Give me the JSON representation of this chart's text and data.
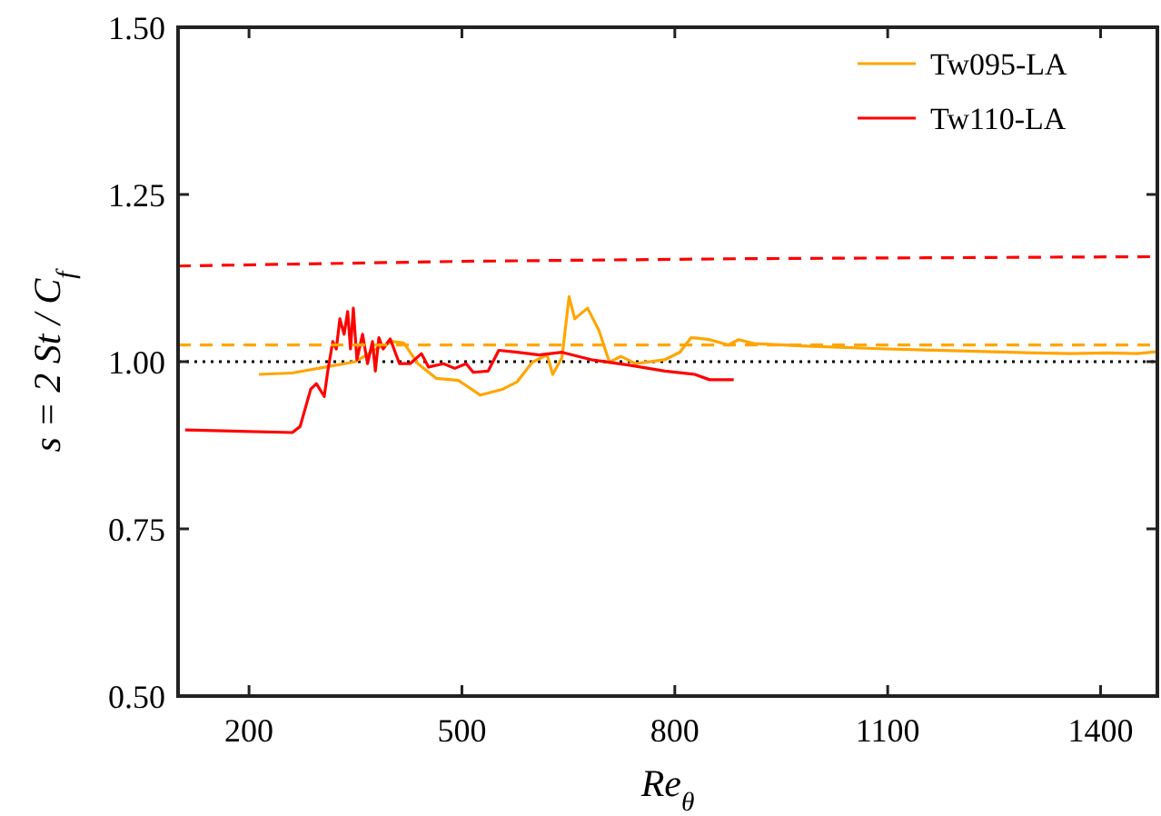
{
  "chart_data": {
    "type": "line",
    "xlabel": "Re$_{θ}$",
    "ylabel": "s = 2 St / C$_{f}$",
    "xlim": [
      100,
      1480
    ],
    "xticks": [
      200,
      500,
      800,
      1100,
      1400
    ],
    "ylim": [
      0.5,
      1.5
    ],
    "yticks": [
      {
        "value": 0.5,
        "label": "0.50"
      },
      {
        "value": 0.75,
        "label": "0.75"
      },
      {
        "value": 1.0,
        "label": "1.00"
      },
      {
        "value": 1.25,
        "label": "1.25"
      },
      {
        "value": 1.5,
        "label": "1.50"
      }
    ],
    "legend": "top right",
    "grid": false,
    "ref_lines": [
      {
        "axis": "y",
        "value": 1.0,
        "color": "#000000",
        "line_style": "dotted"
      }
    ],
    "series": [
      {
        "name": "Tw095-LA",
        "color": "#ffa500",
        "line_style": "solid",
        "x": [
          214,
          261,
          308,
          350,
          381,
          402,
          418,
          438,
          464,
          495,
          526,
          558,
          578,
          599,
          620,
          628,
          641,
          651,
          659,
          677,
          693,
          708,
          724,
          745,
          786,
          807,
          823,
          849,
          875,
          890,
          911,
          994,
          1098,
          1202,
          1306,
          1358,
          1410,
          1452,
          1480
        ],
        "values": [
          0.981,
          0.983,
          0.992,
          1.0,
          1.02,
          1.03,
          1.028,
          0.997,
          0.975,
          0.972,
          0.95,
          0.959,
          0.97,
          0.999,
          1.01,
          0.981,
          1.006,
          1.097,
          1.064,
          1.08,
          1.047,
          0.999,
          1.008,
          0.997,
          1.003,
          1.014,
          1.036,
          1.033,
          1.025,
          1.033,
          1.027,
          1.023,
          1.019,
          1.016,
          1.013,
          1.012,
          1.013,
          1.012,
          1.015
        ]
      },
      {
        "name": "Tw110-LA",
        "color": "#ff0000",
        "line_style": "solid",
        "x": [
          110,
          261,
          272,
          287,
          295,
          306,
          311,
          318,
          323,
          328,
          334,
          339,
          343,
          347,
          352,
          360,
          367,
          374,
          378,
          383,
          389,
          399,
          412,
          427,
          443,
          453,
          474,
          490,
          506,
          516,
          537,
          552,
          578,
          609,
          641,
          682,
          734,
          786,
          828,
          849,
          883
        ],
        "values": [
          0.898,
          0.894,
          0.903,
          0.959,
          0.967,
          0.948,
          0.986,
          1.03,
          1.019,
          1.064,
          1.041,
          1.075,
          1.019,
          1.08,
          1.003,
          1.041,
          0.997,
          1.03,
          0.986,
          1.036,
          1.019,
          1.034,
          0.997,
          0.997,
          1.012,
          0.992,
          0.997,
          0.99,
          0.997,
          0.984,
          0.986,
          1.017,
          1.014,
          1.01,
          1.014,
          1.003,
          0.995,
          0.986,
          0.981,
          0.973,
          0.973
        ]
      },
      {
        "color": "#ffa500",
        "line_style": "dashed",
        "x": [
          100,
          1480
        ],
        "values": [
          1.025,
          1.025
        ]
      },
      {
        "color": "#ff0000",
        "line_style": "dashed",
        "x": [
          100,
          500,
          900,
          1480
        ],
        "values": [
          1.143,
          1.15,
          1.154,
          1.157
        ]
      }
    ]
  }
}
